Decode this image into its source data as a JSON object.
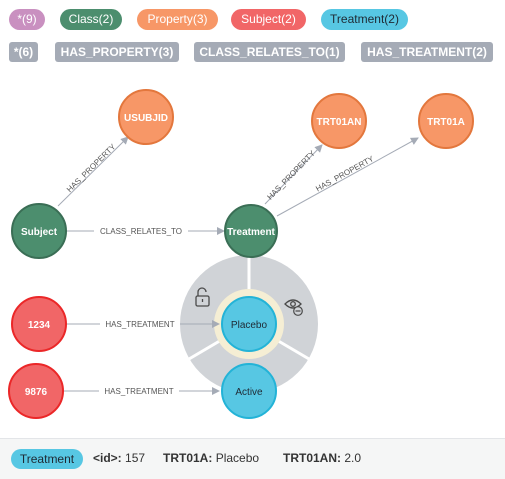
{
  "node_labels": [
    {
      "label": "*(9)",
      "color": "#c990c0"
    },
    {
      "label": "Class(2)",
      "color": "#4c8e6e"
    },
    {
      "label": "Property(3)",
      "color": "#f79767"
    },
    {
      "label": "Subject(2)",
      "color": "#f16667"
    },
    {
      "label": "Treatment(2)",
      "color": "#57c7e3"
    }
  ],
  "rel_types": [
    "*(6)",
    "HAS_PROPERTY(3)",
    "CLASS_RELATES_TO(1)",
    "HAS_TREATMENT(2)"
  ],
  "graph": {
    "nodes": {
      "subject": "Subject",
      "treatment": "Treatment",
      "usubjid": "USUBJID",
      "trt01an": "TRT01AN",
      "trt01a": "TRT01A",
      "s1234": "1234",
      "s9876": "9876",
      "placebo": "Placebo",
      "active": "Active"
    },
    "relationships": {
      "has_property_1": "HAS_PROPERTY",
      "has_property_2": "HAS_PROPERTY",
      "has_property_3": "HAS_PROPERTY",
      "class_relates_to": "CLASS_RELATES_TO",
      "has_treatment_1": "HAS_TREATMENT",
      "has_treatment_2": "HAS_TREATMENT"
    },
    "ring_icons": [
      "unlock-icon",
      "hide-eye-icon"
    ]
  },
  "footer": {
    "label": "Treatment",
    "id_key": "<id>:",
    "id_val": "157",
    "p1_key": "TRT01A:",
    "p1_val": "Placebo",
    "p2_key": "TRT01AN:",
    "p2_val": "2.0"
  }
}
